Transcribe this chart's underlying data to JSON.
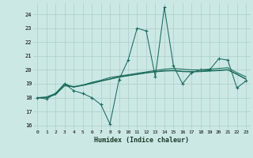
{
  "xlabel": "Humidex (Indice chaleur)",
  "background_color": "#cce8e4",
  "grid_color": "#aacec8",
  "line_color": "#1a6b5a",
  "xlim": [
    -0.5,
    23.5
  ],
  "ylim": [
    15.7,
    24.8
  ],
  "yticks": [
    16,
    17,
    18,
    19,
    20,
    21,
    22,
    23,
    24
  ],
  "xticks": [
    0,
    1,
    2,
    3,
    4,
    5,
    6,
    7,
    8,
    9,
    10,
    11,
    12,
    13,
    14,
    15,
    16,
    17,
    18,
    19,
    20,
    21,
    22,
    23
  ],
  "main_series": [
    18.0,
    17.9,
    18.3,
    19.0,
    18.5,
    18.3,
    18.0,
    17.5,
    16.1,
    19.3,
    20.7,
    23.0,
    22.8,
    19.5,
    24.5,
    20.3,
    19.0,
    19.8,
    20.0,
    20.0,
    20.8,
    20.7,
    18.7,
    19.2
  ],
  "smooth1": [
    18.0,
    18.05,
    18.3,
    19.0,
    18.75,
    18.9,
    19.1,
    19.25,
    19.45,
    19.55,
    19.65,
    19.75,
    19.85,
    19.95,
    20.05,
    20.1,
    20.05,
    20.0,
    20.0,
    20.05,
    20.1,
    20.15,
    19.8,
    19.5
  ],
  "smooth2": [
    18.0,
    18.0,
    18.25,
    18.9,
    18.8,
    18.9,
    19.05,
    19.2,
    19.35,
    19.5,
    19.6,
    19.7,
    19.8,
    19.88,
    19.94,
    19.96,
    19.9,
    19.88,
    19.9,
    19.94,
    19.97,
    20.02,
    19.7,
    19.35
  ],
  "smooth3": [
    18.0,
    18.0,
    18.22,
    18.85,
    18.77,
    18.87,
    19.02,
    19.18,
    19.32,
    19.47,
    19.57,
    19.67,
    19.77,
    19.85,
    19.91,
    19.93,
    19.87,
    19.85,
    19.87,
    19.91,
    19.94,
    19.99,
    19.67,
    19.32
  ]
}
